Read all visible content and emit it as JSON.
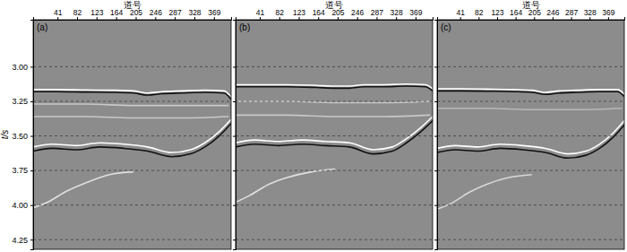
{
  "chart_data": [
    {
      "type": "line",
      "title": "(a)",
      "x_label": "道号",
      "y_label": "t/s",
      "xlim": [
        -10,
        405
      ],
      "ylim": [
        2.66,
        4.32
      ],
      "xticks": [
        41,
        82,
        123,
        164,
        205,
        246,
        287,
        328,
        369
      ],
      "yticks": [
        {
          "value": 3,
          "label": "3.00"
        },
        {
          "value": 3.25,
          "label": "3.25"
        },
        {
          "value": 3.5,
          "label": "3.50"
        },
        {
          "value": 3.75,
          "label": "3.75"
        },
        {
          "value": 4,
          "label": "4.00"
        },
        {
          "value": 4.25,
          "label": "4.25"
        }
      ],
      "grid": true,
      "series": [
        {
          "color": "#ffffff",
          "x": [
            -10,
            40,
            100,
            160,
            200,
            230,
            260,
            300,
            350,
            390,
            405
          ],
          "values": [
            3.165,
            3.165,
            3.168,
            3.17,
            3.175,
            3.19,
            3.18,
            3.175,
            3.17,
            3.175,
            3.22
          ]
        },
        {
          "color": "#111111",
          "x": [
            -10,
            40,
            100,
            160,
            200,
            230,
            260,
            300,
            350,
            390,
            405
          ],
          "values": [
            3.18,
            3.18,
            3.183,
            3.185,
            3.19,
            3.205,
            3.195,
            3.19,
            3.185,
            3.19,
            3.235
          ]
        },
        {
          "color": "#c8c8c8",
          "x": [
            -10,
            100,
            200,
            300,
            400
          ],
          "values": [
            3.27,
            3.27,
            3.28,
            3.28,
            3.28
          ]
        },
        {
          "color": "#c8c8c8",
          "x": [
            -10,
            100,
            200,
            300,
            400
          ],
          "values": [
            3.36,
            3.36,
            3.37,
            3.37,
            3.36
          ]
        },
        {
          "color": "#ffffff",
          "x": [
            -10,
            30,
            80,
            130,
            180,
            230,
            280,
            320,
            350,
            380,
            405
          ],
          "values": [
            3.58,
            3.56,
            3.57,
            3.55,
            3.56,
            3.58,
            3.62,
            3.6,
            3.55,
            3.47,
            3.38
          ]
        },
        {
          "color": "#111111",
          "x": [
            -10,
            30,
            80,
            130,
            180,
            230,
            280,
            320,
            350,
            380,
            405
          ],
          "values": [
            3.61,
            3.59,
            3.6,
            3.58,
            3.59,
            3.61,
            3.65,
            3.63,
            3.58,
            3.5,
            3.41
          ]
        },
        {
          "color": "#e0e0e0",
          "x": [
            -10,
            20,
            60,
            100,
            150,
            200
          ],
          "values": [
            4.02,
            3.98,
            3.9,
            3.84,
            3.78,
            3.76
          ]
        }
      ]
    },
    {
      "type": "line",
      "title": "(b)",
      "x_label": "道号",
      "xlim": [
        -10,
        405
      ],
      "ylim": [
        2.66,
        4.32
      ],
      "xticks": [
        41,
        82,
        123,
        164,
        205,
        246,
        287,
        328,
        369
      ],
      "yticks": [
        {
          "value": 3,
          "label": "3.00"
        },
        {
          "value": 3.25,
          "label": "3.25"
        },
        {
          "value": 3.5,
          "label": "3.50"
        },
        {
          "value": 3.75,
          "label": "3.75"
        },
        {
          "value": 4,
          "label": "4.00"
        },
        {
          "value": 4.25,
          "label": "4.25"
        }
      ],
      "grid": true,
      "tick_labels": "x",
      "series": [
        {
          "color": "#ffffff",
          "x": [
            -10,
            40,
            100,
            160,
            200,
            230,
            260,
            300,
            350,
            390,
            405
          ],
          "values": [
            3.13,
            3.13,
            3.13,
            3.135,
            3.14,
            3.14,
            3.13,
            3.13,
            3.125,
            3.13,
            3.16
          ]
        },
        {
          "color": "#111111",
          "x": [
            -10,
            40,
            100,
            160,
            200,
            230,
            260,
            300,
            350,
            390,
            405
          ],
          "values": [
            3.145,
            3.145,
            3.145,
            3.15,
            3.155,
            3.155,
            3.145,
            3.145,
            3.14,
            3.145,
            3.175
          ]
        },
        {
          "color": "#c8c8c8",
          "x": [
            -10,
            100,
            200,
            300,
            400
          ],
          "values": [
            3.25,
            3.25,
            3.26,
            3.26,
            3.25
          ]
        },
        {
          "color": "#c8c8c8",
          "x": [
            -10,
            100,
            200,
            300,
            400
          ],
          "values": [
            3.35,
            3.35,
            3.36,
            3.36,
            3.35
          ]
        },
        {
          "color": "#ffffff",
          "x": [
            -10,
            30,
            80,
            130,
            180,
            230,
            280,
            320,
            350,
            380,
            405
          ],
          "values": [
            3.55,
            3.53,
            3.54,
            3.53,
            3.54,
            3.55,
            3.6,
            3.58,
            3.52,
            3.44,
            3.36
          ]
        },
        {
          "color": "#111111",
          "x": [
            -10,
            30,
            80,
            130,
            180,
            230,
            280,
            320,
            350,
            380,
            405
          ],
          "values": [
            3.58,
            3.56,
            3.57,
            3.56,
            3.57,
            3.58,
            3.63,
            3.61,
            3.55,
            3.47,
            3.39
          ]
        },
        {
          "color": "#e0e0e0",
          "x": [
            -10,
            20,
            60,
            100,
            150,
            200
          ],
          "values": [
            3.98,
            3.93,
            3.85,
            3.8,
            3.76,
            3.74
          ]
        }
      ]
    },
    {
      "type": "line",
      "title": "(c)",
      "x_label": "道号",
      "xlim": [
        -10,
        405
      ],
      "ylim": [
        2.66,
        4.32
      ],
      "xticks": [
        41,
        82,
        123,
        164,
        205,
        246,
        287,
        328,
        369
      ],
      "yticks": [
        {
          "value": 3,
          "label": "3.00"
        },
        {
          "value": 3.25,
          "label": "3.25"
        },
        {
          "value": 3.5,
          "label": "3.50"
        },
        {
          "value": 3.75,
          "label": "3.75"
        },
        {
          "value": 4,
          "label": "4.00"
        },
        {
          "value": 4.25,
          "label": "4.25"
        }
      ],
      "grid": true,
      "tick_labels": "x",
      "series": [
        {
          "color": "#ffffff",
          "x": [
            -10,
            40,
            100,
            160,
            200,
            230,
            260,
            300,
            350,
            390,
            405
          ],
          "values": [
            3.16,
            3.16,
            3.162,
            3.165,
            3.17,
            3.185,
            3.175,
            3.17,
            3.165,
            3.165,
            3.2
          ]
        },
        {
          "color": "#111111",
          "x": [
            -10,
            40,
            100,
            160,
            200,
            230,
            260,
            300,
            350,
            390,
            405
          ],
          "values": [
            3.175,
            3.175,
            3.177,
            3.18,
            3.185,
            3.2,
            3.19,
            3.185,
            3.18,
            3.18,
            3.215
          ]
        },
        {
          "color": "#b8b8b8",
          "x": [
            -10,
            100,
            200,
            300,
            400
          ],
          "values": [
            3.3,
            3.3,
            3.31,
            3.31,
            3.3
          ]
        },
        {
          "color": "#ffffff",
          "x": [
            -10,
            30,
            80,
            130,
            180,
            230,
            280,
            320,
            350,
            380,
            405
          ],
          "values": [
            3.59,
            3.57,
            3.58,
            3.56,
            3.57,
            3.59,
            3.63,
            3.61,
            3.56,
            3.48,
            3.39
          ]
        },
        {
          "color": "#111111",
          "x": [
            -10,
            30,
            80,
            130,
            180,
            230,
            280,
            320,
            350,
            380,
            405
          ],
          "values": [
            3.62,
            3.6,
            3.61,
            3.59,
            3.6,
            3.62,
            3.66,
            3.64,
            3.59,
            3.51,
            3.42
          ]
        },
        {
          "color": "#d8d8d8",
          "x": [
            -10,
            20,
            60,
            100,
            150,
            200
          ],
          "values": [
            4.03,
            3.99,
            3.91,
            3.85,
            3.8,
            3.78
          ]
        }
      ]
    }
  ]
}
